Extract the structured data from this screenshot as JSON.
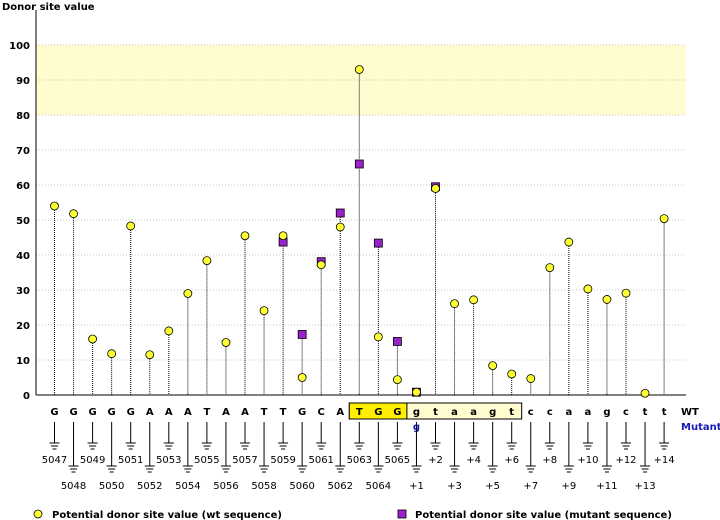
{
  "chart_data": {
    "type": "scatter",
    "ylabel": "Donor site value",
    "ylim": [
      0,
      105
    ],
    "yticks": [
      0,
      10,
      20,
      30,
      40,
      50,
      60,
      70,
      80,
      90,
      100
    ],
    "threshold_band": [
      80,
      100
    ],
    "row_labels": {
      "wt": "WT",
      "mutant": "Mutant"
    },
    "positions": [
      "5047",
      "5048",
      "5049",
      "5050",
      "5051",
      "5052",
      "5053",
      "5054",
      "5055",
      "5056",
      "5057",
      "5058",
      "5059",
      "5060",
      "5061",
      "5062",
      "5063",
      "5064",
      "5065",
      "+1",
      "+2",
      "+3",
      "+4",
      "+5",
      "+6",
      "+7",
      "+8",
      "+9",
      "+10",
      "+11",
      "+12",
      "+13",
      "+14"
    ],
    "wt_sequence": [
      "G",
      "G",
      "G",
      "G",
      "G",
      "A",
      "A",
      "A",
      "T",
      "A",
      "A",
      "T",
      "T",
      "G",
      "C",
      "A",
      "T",
      "G",
      "G",
      "g",
      "t",
      "a",
      "a",
      "g",
      "t",
      "c",
      "c",
      "a",
      "a",
      "g",
      "c",
      "t",
      "t"
    ],
    "mutant_sequence": [
      "",
      "",
      "",
      "",
      "",
      "",
      "",
      "",
      "",
      "",
      "",
      "",
      "",
      "",
      "",
      "",
      "",
      "",
      "",
      "g",
      "",
      "",
      "",
      "",
      "",
      "",
      "",
      "",
      "",
      "",
      "",
      "",
      ""
    ],
    "highlighted_range": [
      16,
      24
    ],
    "series": [
      {
        "name": "Potential donor site value (wt sequence)",
        "color": "#ffff33",
        "values": [
          54,
          51.8,
          16,
          11.8,
          48.3,
          11.5,
          18.3,
          29,
          38.4,
          15,
          45.5,
          24.1,
          45.5,
          5,
          37.2,
          48,
          93,
          16.6,
          4.4,
          0.8,
          59,
          26.1,
          27.2,
          8.4,
          6,
          4.7,
          36.4,
          43.7,
          30.3,
          27.3,
          29.1,
          0.5,
          50.4
        ]
      },
      {
        "name": "Potential donor site value (mutant sequence)",
        "color": "#9922cc",
        "values": [
          null,
          null,
          null,
          null,
          null,
          null,
          null,
          null,
          null,
          null,
          null,
          null,
          43.7,
          17.3,
          38.1,
          52,
          66,
          43.4,
          15.3,
          0.8,
          59.5,
          null,
          null,
          null,
          null,
          null,
          null,
          null,
          null,
          null,
          null,
          null,
          null
        ]
      }
    ]
  }
}
